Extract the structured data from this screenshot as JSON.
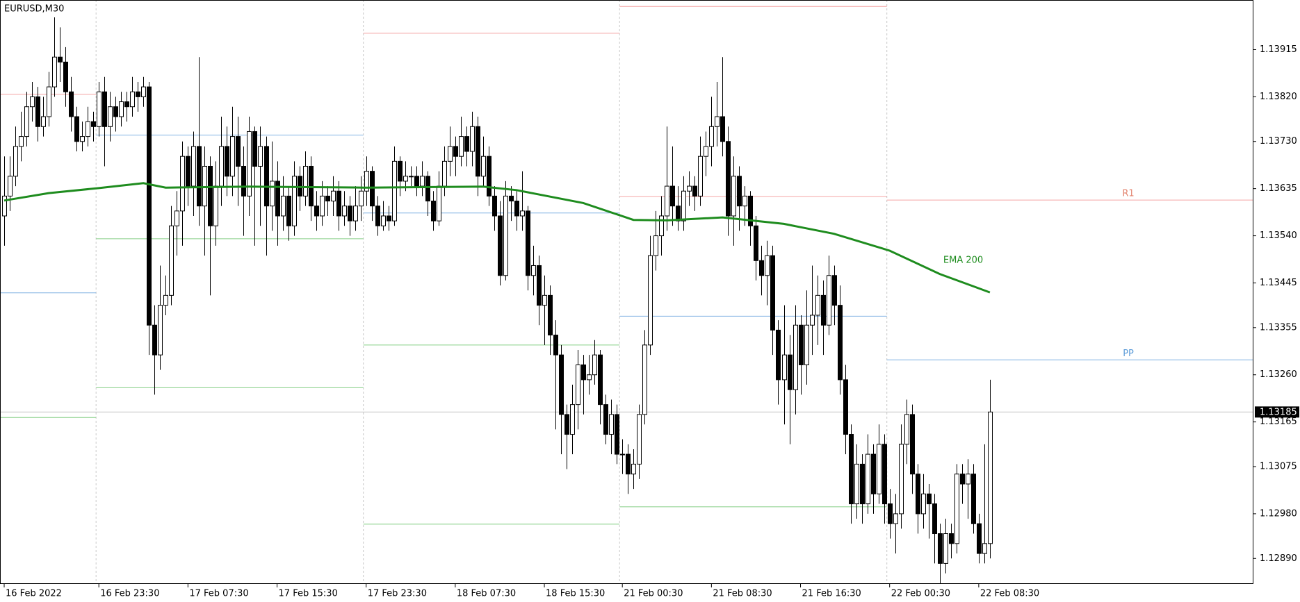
{
  "chart_data": {
    "type": "candlestick",
    "title": "EURUSD,M30",
    "up_color": "#ffffff",
    "down_color": "#000000",
    "outline_color": "#000000",
    "xlim": [
      -0.75,
      224.2
    ],
    "ylim": [
      1.1284,
      1.14015
    ],
    "xticks": [
      {
        "value": 0,
        "label": "16 Feb 2022"
      },
      {
        "value": 17,
        "label": "16 Feb 23:30"
      },
      {
        "value": 33,
        "label": "17 Feb 07:30"
      },
      {
        "value": 49,
        "label": "17 Feb 15:30"
      },
      {
        "value": 65,
        "label": "17 Feb 23:30"
      },
      {
        "value": 81,
        "label": "18 Feb 07:30"
      },
      {
        "value": 97,
        "label": "18 Feb 15:30"
      },
      {
        "value": 111,
        "label": "21 Feb 00:30"
      },
      {
        "value": 127,
        "label": "21 Feb 08:30"
      },
      {
        "value": 143,
        "label": "21 Feb 16:30"
      },
      {
        "value": 159,
        "label": "22 Feb 00:30"
      },
      {
        "value": 175,
        "label": "22 Feb 08:30"
      }
    ],
    "yticks": [
      1.13915,
      {
        "value": 1.1382,
        "label": "1.13820"
      },
      {
        "value": 1.1373,
        "label": "1.13730"
      },
      1.13635,
      {
        "value": 1.1354,
        "label": "1.13540"
      },
      1.13445,
      1.13355,
      {
        "value": 1.1326,
        "label": "1.13260"
      },
      1.13165,
      1.13075,
      {
        "value": 1.1298,
        "label": "1.12980"
      },
      {
        "value": 1.1289,
        "label": "1.12890"
      }
    ],
    "current_price": 1.13185,
    "current_price_color": "#c0c0c0",
    "day_separators": [
      16.5,
      64.5,
      110.5,
      158.5
    ],
    "open": [
      1.1358,
      1.1362,
      1.1366,
      1.1372,
      1.1374,
      1.138,
      1.1382,
      1.1376,
      1.1378,
      1.1384,
      1.139,
      1.1389,
      1.1383,
      1.1378,
      1.1373,
      1.1374,
      1.1377,
      1.1376,
      1.1383,
      1.1376,
      1.138,
      1.1378,
      1.1381,
      1.138,
      1.1383,
      1.1382,
      1.1384,
      1.1336,
      1.133,
      1.134,
      1.1342,
      1.1356,
      1.1359,
      1.137,
      1.1364,
      1.1372,
      1.136,
      1.1368,
      1.1356,
      1.1364,
      1.1372,
      1.1366,
      1.1374,
      1.1368,
      1.1362,
      1.1375,
      1.1368,
      1.1372,
      1.136,
      1.1365,
      1.1358,
      1.1362,
      1.1356,
      1.1366,
      1.1362,
      1.1368,
      1.136,
      1.1358,
      1.1362,
      1.1361,
      1.1363,
      1.1358,
      1.136,
      1.1357,
      1.136,
      1.1363,
      1.1367,
      1.136,
      1.1356,
      1.1358,
      1.1357,
      1.1369,
      1.1365,
      1.1366,
      1.1366,
      1.1364,
      1.1366,
      1.1361,
      1.1357,
      1.1364,
      1.1369,
      1.1372,
      1.137,
      1.1374,
      1.1371,
      1.1376,
      1.1366,
      1.137,
      1.1362,
      1.1358,
      1.1346,
      1.1362,
      1.1361,
      1.1358,
      1.1359,
      1.1346,
      1.1348,
      1.134,
      1.1342,
      1.1334,
      1.133,
      1.1318,
      1.1314,
      1.132,
      1.1328,
      1.1325,
      1.1326,
      1.133,
      1.132,
      1.1314,
      1.1318,
      1.131,
      1.131,
      1.1306,
      1.1308,
      1.1318,
      1.1332,
      1.135,
      1.1354,
      1.1358,
      1.1364,
      1.136,
      1.1357,
      1.1363,
      1.1364,
      1.1362,
      1.137,
      1.1372,
      1.1376,
      1.1378,
      1.1373,
      1.1358,
      1.1366,
      1.136,
      1.1362,
      1.1356,
      1.1349,
      1.1346,
      1.135,
      1.1335,
      1.1325,
      1.133,
      1.1323,
      1.1336,
      1.1328,
      1.1336,
      1.1338,
      1.1342,
      1.1336,
      1.1346,
      1.134,
      1.1325,
      1.1314,
      1.13,
      1.1308,
      1.13,
      1.131,
      1.1302,
      1.1312,
      1.13,
      1.1296,
      1.1298,
      1.1312,
      1.1318,
      1.1306,
      1.1298,
      1.1302,
      1.13,
      1.1294,
      1.1288,
      1.1294,
      1.1292,
      1.1306,
      1.1304,
      1.1306,
      1.1296,
      1.129,
      1.1292
    ],
    "high": [
      1.137,
      1.137,
      1.1376,
      1.1379,
      1.1383,
      1.1385,
      1.1384,
      1.1382,
      1.1387,
      1.1398,
      1.1396,
      1.1392,
      1.1386,
      1.138,
      1.1377,
      1.138,
      1.1379,
      1.1385,
      1.1386,
      1.1383,
      1.1382,
      1.1383,
      1.1383,
      1.1386,
      1.1385,
      1.1386,
      1.1385,
      1.134,
      1.1348,
      1.1346,
      1.136,
      1.1363,
      1.1373,
      1.1372,
      1.1375,
      1.139,
      1.1372,
      1.137,
      1.1369,
      1.1378,
      1.1376,
      1.138,
      1.1378,
      1.1372,
      1.1378,
      1.1376,
      1.1376,
      1.1374,
      1.1373,
      1.1369,
      1.1366,
      1.1364,
      1.1369,
      1.1368,
      1.1371,
      1.137,
      1.1363,
      1.1365,
      1.1364,
      1.1366,
      1.1365,
      1.1363,
      1.1362,
      1.1364,
      1.1366,
      1.137,
      1.1368,
      1.1362,
      1.1361,
      1.136,
      1.1372,
      1.137,
      1.1369,
      1.1368,
      1.1368,
      1.1369,
      1.1367,
      1.1363,
      1.1367,
      1.1372,
      1.1376,
      1.1374,
      1.1378,
      1.1376,
      1.1379,
      1.1378,
      1.1374,
      1.1372,
      1.1364,
      1.1361,
      1.1365,
      1.1364,
      1.1363,
      1.1367,
      1.136,
      1.1352,
      1.135,
      1.1346,
      1.1344,
      1.1337,
      1.1332,
      1.132,
      1.1324,
      1.1331,
      1.133,
      1.133,
      1.1333,
      1.1331,
      1.1322,
      1.1321,
      1.132,
      1.1313,
      1.1312,
      1.1311,
      1.132,
      1.1335,
      1.1354,
      1.1359,
      1.1362,
      1.1376,
      1.1372,
      1.1364,
      1.1366,
      1.1367,
      1.1366,
      1.1374,
      1.1375,
      1.1382,
      1.1385,
      1.139,
      1.1376,
      1.137,
      1.1368,
      1.1364,
      1.1363,
      1.1358,
      1.1352,
      1.1353,
      1.1352,
      1.1337,
      1.134,
      1.1334,
      1.134,
      1.1338,
      1.1343,
      1.1348,
      1.1346,
      1.1345,
      1.135,
      1.1348,
      1.1344,
      1.1328,
      1.1316,
      1.1312,
      1.131,
      1.1314,
      1.1312,
      1.1316,
      1.1314,
      1.1303,
      1.1302,
      1.1316,
      1.1321,
      1.132,
      1.1308,
      1.1306,
      1.1304,
      1.1302,
      1.1296,
      1.1297,
      1.1296,
      1.1308,
      1.1308,
      1.1309,
      1.1308,
      1.1298,
      1.1312,
      1.1325
    ],
    "low": [
      1.1352,
      1.1359,
      1.1364,
      1.1369,
      1.1372,
      1.1377,
      1.1373,
      1.1374,
      1.1376,
      1.1382,
      1.1385,
      1.138,
      1.1375,
      1.1371,
      1.1371,
      1.1372,
      1.1373,
      1.1374,
      1.1368,
      1.1373,
      1.1375,
      1.1376,
      1.1377,
      1.1378,
      1.1379,
      1.138,
      1.133,
      1.1322,
      1.1327,
      1.1338,
      1.134,
      1.135,
      1.1352,
      1.136,
      1.1358,
      1.1356,
      1.135,
      1.1342,
      1.1352,
      1.136,
      1.1362,
      1.1362,
      1.136,
      1.1354,
      1.1358,
      1.1352,
      1.1356,
      1.135,
      1.1355,
      1.1352,
      1.1355,
      1.1353,
      1.1354,
      1.1359,
      1.136,
      1.1357,
      1.1355,
      1.1356,
      1.1358,
      1.1358,
      1.1355,
      1.1356,
      1.1354,
      1.1355,
      1.1357,
      1.136,
      1.1357,
      1.1354,
      1.1355,
      1.1355,
      1.1356,
      1.1362,
      1.1363,
      1.1364,
      1.1362,
      1.1362,
      1.1358,
      1.1355,
      1.1356,
      1.1362,
      1.1366,
      1.1366,
      1.1368,
      1.1368,
      1.1368,
      1.1362,
      1.1364,
      1.136,
      1.1355,
      1.1344,
      1.1345,
      1.1357,
      1.1355,
      1.1355,
      1.1343,
      1.1342,
      1.1336,
      1.1332,
      1.133,
      1.1315,
      1.131,
      1.1307,
      1.131,
      1.1315,
      1.1318,
      1.1322,
      1.1324,
      1.1316,
      1.1312,
      1.131,
      1.1308,
      1.1306,
      1.1302,
      1.1303,
      1.1305,
      1.1316,
      1.133,
      1.1347,
      1.135,
      1.1355,
      1.1356,
      1.1355,
      1.1355,
      1.136,
      1.1359,
      1.136,
      1.1366,
      1.1368,
      1.1372,
      1.137,
      1.1354,
      1.1352,
      1.1355,
      1.1356,
      1.1352,
      1.1345,
      1.1342,
      1.134,
      1.133,
      1.132,
      1.1316,
      1.1312,
      1.1318,
      1.1322,
      1.1324,
      1.133,
      1.1332,
      1.133,
      1.1334,
      1.1336,
      1.1322,
      1.131,
      1.1296,
      1.1297,
      1.1296,
      1.1298,
      1.1298,
      1.13,
      1.1296,
      1.1293,
      1.129,
      1.1295,
      1.1308,
      1.1302,
      1.1294,
      1.1295,
      1.1293,
      1.1288,
      1.1284,
      1.1286,
      1.1289,
      1.129,
      1.13,
      1.1297,
      1.1294,
      1.1288,
      1.1288,
      1.1289
    ],
    "close": [
      1.1362,
      1.1366,
      1.1372,
      1.1374,
      1.138,
      1.1382,
      1.1376,
      1.1378,
      1.1384,
      1.139,
      1.1389,
      1.1383,
      1.1378,
      1.1373,
      1.1374,
      1.1377,
      1.1376,
      1.1383,
      1.1376,
      1.138,
      1.1378,
      1.1381,
      1.138,
      1.1383,
      1.1382,
      1.1384,
      1.1336,
      1.133,
      1.134,
      1.1342,
      1.1356,
      1.1359,
      1.137,
      1.1364,
      1.1372,
      1.136,
      1.1368,
      1.1356,
      1.1364,
      1.1372,
      1.1366,
      1.1374,
      1.1368,
      1.1362,
      1.1375,
      1.1368,
      1.1372,
      1.136,
      1.1365,
      1.1358,
      1.1362,
      1.1356,
      1.1366,
      1.1362,
      1.1368,
      1.136,
      1.1358,
      1.1362,
      1.1361,
      1.1363,
      1.1358,
      1.136,
      1.1357,
      1.136,
      1.1363,
      1.1367,
      1.136,
      1.1356,
      1.1358,
      1.1357,
      1.1369,
      1.1365,
      1.1366,
      1.1366,
      1.1364,
      1.1366,
      1.1361,
      1.1357,
      1.1364,
      1.1369,
      1.1372,
      1.137,
      1.1374,
      1.1371,
      1.1376,
      1.1366,
      1.137,
      1.1362,
      1.1358,
      1.1346,
      1.1362,
      1.1361,
      1.1358,
      1.1359,
      1.1346,
      1.1348,
      1.134,
      1.1342,
      1.1334,
      1.133,
      1.1318,
      1.1314,
      1.132,
      1.1328,
      1.1325,
      1.1326,
      1.133,
      1.132,
      1.1314,
      1.1318,
      1.131,
      1.131,
      1.1306,
      1.1308,
      1.1318,
      1.1332,
      1.135,
      1.1354,
      1.1358,
      1.1364,
      1.136,
      1.1357,
      1.1363,
      1.1364,
      1.1362,
      1.137,
      1.1372,
      1.1376,
      1.1378,
      1.1373,
      1.1358,
      1.1366,
      1.136,
      1.1362,
      1.1356,
      1.1349,
      1.1346,
      1.135,
      1.1335,
      1.1325,
      1.133,
      1.1323,
      1.1336,
      1.1328,
      1.1336,
      1.1338,
      1.1342,
      1.1336,
      1.1346,
      1.134,
      1.1325,
      1.1314,
      1.13,
      1.1308,
      1.13,
      1.131,
      1.1302,
      1.1312,
      1.13,
      1.1296,
      1.1298,
      1.1312,
      1.1318,
      1.1306,
      1.1298,
      1.1302,
      1.13,
      1.1294,
      1.1288,
      1.1294,
      1.1292,
      1.1306,
      1.1304,
      1.1306,
      1.1296,
      1.129,
      1.1292,
      1.13185
    ],
    "series": [
      {
        "name": "EMA 200",
        "color": "#1e8c1e",
        "x": [
          0,
          8,
          17,
          25,
          29,
          44,
          65,
          86,
          92,
          104,
          113,
          119,
          129,
          140,
          149,
          159,
          168,
          177
        ],
        "values": [
          1.13611,
          1.13626,
          1.13636,
          1.13646,
          1.13637,
          1.13639,
          1.13637,
          1.13639,
          1.13632,
          1.13606,
          1.13572,
          1.13571,
          1.13577,
          1.13564,
          1.13544,
          1.1351,
          1.13463,
          1.13426
        ]
      }
    ],
    "levels": [
      {
        "x": [
          -0.75,
          16.5
        ],
        "value": 1.13825,
        "color": "#f4a4a4"
      },
      {
        "x": [
          -0.75,
          16.5
        ],
        "value": 1.13425,
        "color": "#7eb0e2"
      },
      {
        "x": [
          -0.75,
          16.5
        ],
        "value": 1.13174,
        "color": "#86cf86"
      },
      {
        "x": [
          16.5,
          64.5
        ],
        "value": 1.13743,
        "color": "#7eb0e2"
      },
      {
        "x": [
          16.5,
          64.5
        ],
        "value": 1.13534,
        "color": "#86cf86"
      },
      {
        "x": [
          16.5,
          64.5
        ],
        "value": 1.13234,
        "color": "#86cf86"
      },
      {
        "x": [
          64.5,
          110.5
        ],
        "value": 1.13948,
        "color": "#f4a4a4"
      },
      {
        "x": [
          64.5,
          110.5
        ],
        "value": 1.13586,
        "color": "#7eb0e2"
      },
      {
        "x": [
          64.5,
          110.5
        ],
        "value": 1.1332,
        "color": "#86cf86"
      },
      {
        "x": [
          64.5,
          110.5
        ],
        "value": 1.12959,
        "color": "#86cf86"
      },
      {
        "x": [
          110.5,
          158.5
        ],
        "value": 1.14002,
        "color": "#f4a4a4"
      },
      {
        "x": [
          110.5,
          158.5
        ],
        "value": 1.13619,
        "color": "#f4a4a4"
      },
      {
        "x": [
          110.5,
          158.5
        ],
        "value": 1.13378,
        "color": "#7eb0e2"
      },
      {
        "x": [
          110.5,
          158.5
        ],
        "value": 1.12994,
        "color": "#86cf86"
      },
      {
        "name": "R1",
        "x": [
          158.5,
          224.2
        ],
        "value": 1.13612,
        "color": "#f4a4a4",
        "label_color": "#e3846f"
      },
      {
        "name": "PP",
        "x": [
          158.5,
          224.2
        ],
        "value": 1.1329,
        "color": "#7eb0e2",
        "label_color": "#5b9bd8"
      }
    ]
  }
}
